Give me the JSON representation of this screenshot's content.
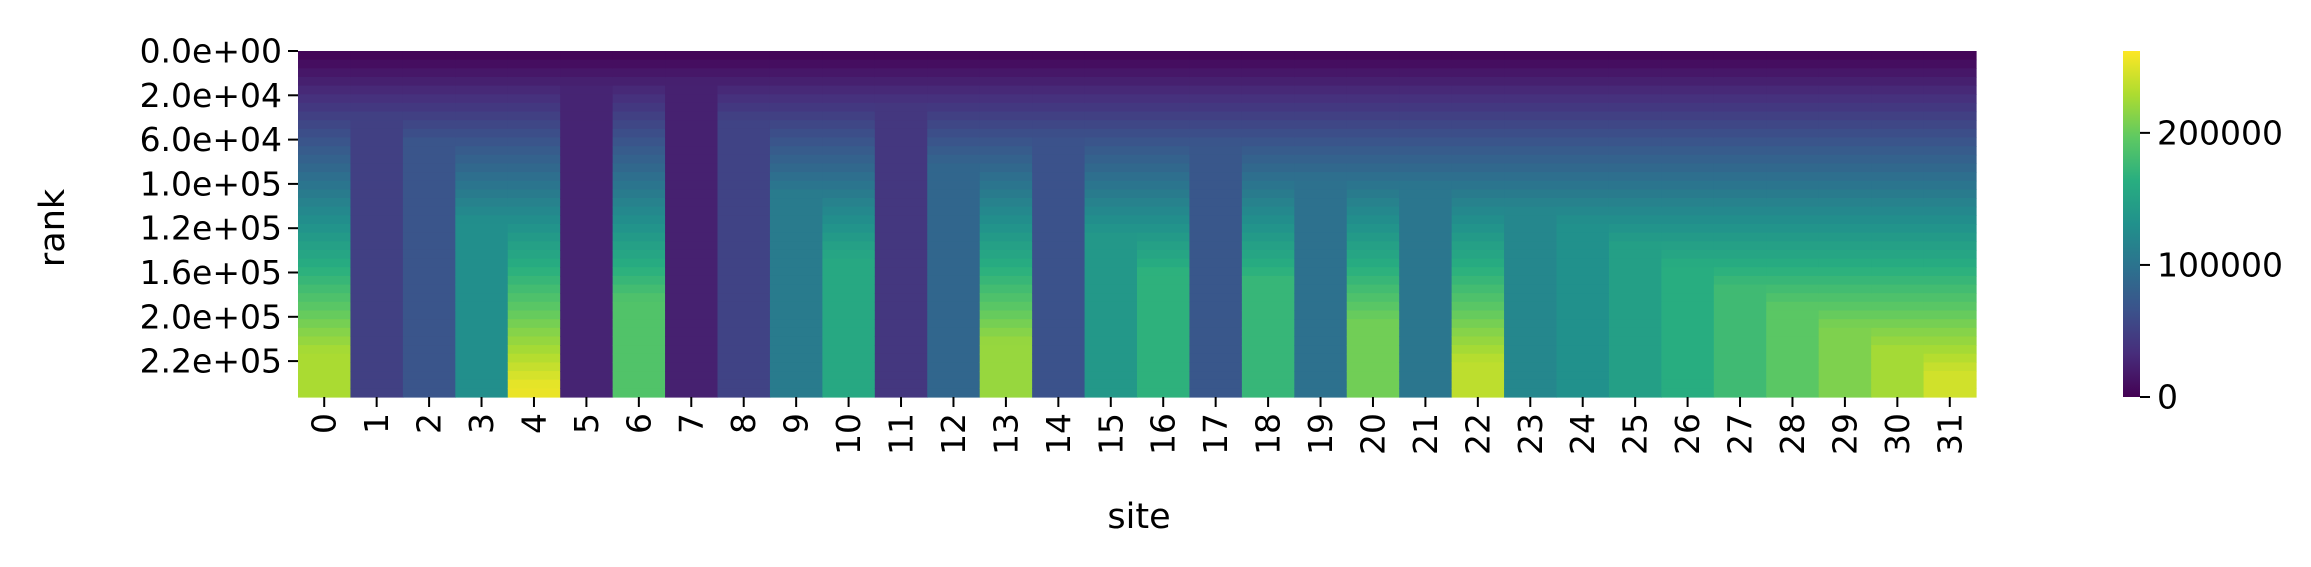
{
  "chart_data": {
    "type": "heatmap",
    "xlabel": "site",
    "ylabel": "rank",
    "x_tick_labels": [
      "0",
      "1",
      "2",
      "3",
      "4",
      "5",
      "6",
      "7",
      "8",
      "9",
      "10",
      "11",
      "12",
      "13",
      "14",
      "15",
      "16",
      "17",
      "18",
      "19",
      "20",
      "21",
      "22",
      "23",
      "24",
      "25",
      "26",
      "27",
      "28",
      "29",
      "30",
      "31"
    ],
    "y_tick_labels": [
      "0.0e+00",
      "2.0e+04",
      "6.0e+04",
      "1.0e+05",
      "1.2e+05",
      "1.6e+05",
      "2.0e+05",
      "2.2e+05"
    ],
    "rank_max": 262000,
    "colorbar": {
      "colormap": "viridis",
      "range": [
        0,
        262000
      ],
      "tick_values": [
        0,
        100000,
        200000
      ],
      "tick_labels": [
        "0",
        "100000",
        "200000"
      ]
    },
    "column_fill_fraction": [
      0.87,
      0.19,
      0.26,
      0.49,
      0.97,
      0.1,
      0.72,
      0.09,
      0.2,
      0.41,
      0.6,
      0.16,
      0.33,
      0.84,
      0.25,
      0.53,
      0.64,
      0.27,
      0.66,
      0.37,
      0.78,
      0.39,
      0.9,
      0.46,
      0.5,
      0.56,
      0.62,
      0.68,
      0.74,
      0.8,
      0.86,
      0.93
    ]
  }
}
